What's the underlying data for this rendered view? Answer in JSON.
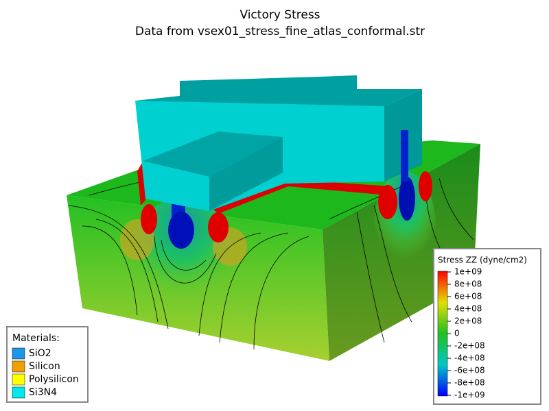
{
  "title": [
    "Victory Stress",
    "Data from vsex01_stress_fine_atlas_conformal.str"
  ],
  "materials": {
    "title": "Materials:",
    "items": [
      {
        "name": "SiO2",
        "color": "#1e96e8"
      },
      {
        "name": "Silicon",
        "color": "#f0a000"
      },
      {
        "name": "Polysilicon",
        "color": "#ffff00"
      },
      {
        "name": "Si3N4",
        "color": "#00e8e8"
      }
    ]
  },
  "colorbar": {
    "title": "Stress ZZ (dyne/cm2)",
    "range": [
      -1000000000,
      1000000000
    ],
    "colors": [
      "#0000ff",
      "#00c8c8",
      "#20c020",
      "#e0e000",
      "#ff0000"
    ],
    "ticks": [
      {
        "value": 1000000000,
        "label": "1e+09"
      },
      {
        "value": 800000000,
        "label": "8e+08"
      },
      {
        "value": 600000000,
        "label": "6e+08"
      },
      {
        "value": 400000000,
        "label": "4e+08"
      },
      {
        "value": 200000000,
        "label": "2e+08"
      },
      0,
      {
        "value": -200000000,
        "label": "-2e+08"
      },
      {
        "value": -400000000,
        "label": "-4e+08"
      },
      {
        "value": -600000000,
        "label": "-6e+08"
      },
      {
        "value": -800000000,
        "label": "-8e+08"
      },
      {
        "value": -1000000000,
        "label": "-1e+09"
      }
    ]
  }
}
